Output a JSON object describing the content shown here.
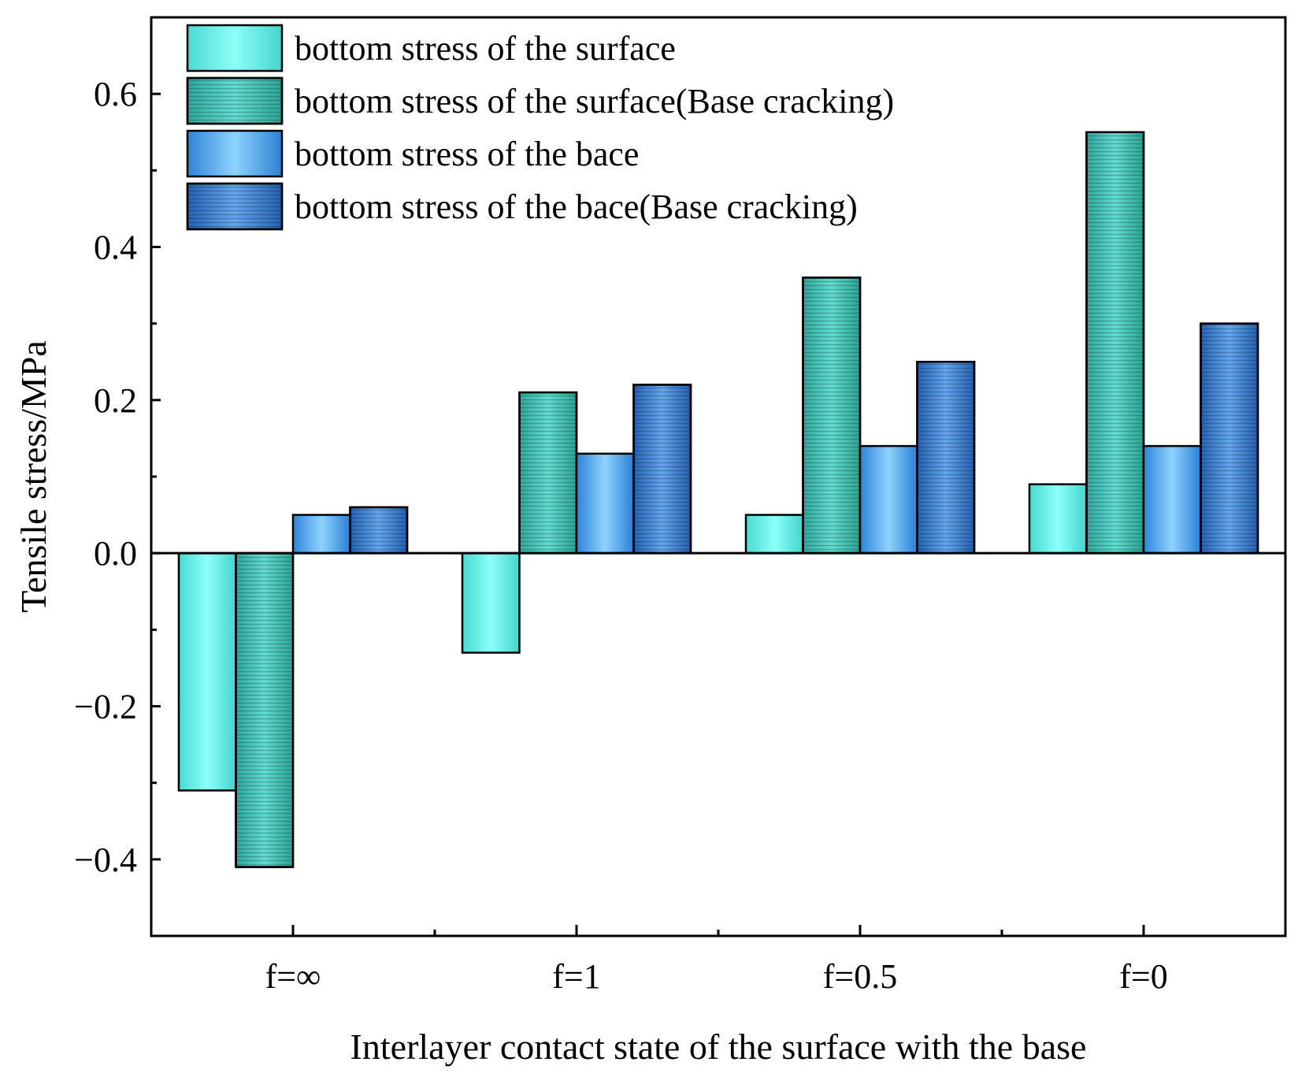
{
  "chart_data": {
    "type": "bar",
    "title": "",
    "xlabel": "Interlayer contact state of the surface with the base",
    "ylabel": "Tensile stress/MPa",
    "categories": [
      "f=∞",
      "f=1",
      "f=0.5",
      "f=0"
    ],
    "ylim": [
      -0.5,
      0.7
    ],
    "yticks": [
      -0.4,
      -0.2,
      0.0,
      0.2,
      0.4,
      0.6
    ],
    "ytick_labels": [
      "−0.4",
      "−0.2",
      "0.0",
      "0.2",
      "0.4",
      "0.6"
    ],
    "grid": false,
    "legend_position": "top-left",
    "series": [
      {
        "name": "bottom stress of the surface",
        "values": [
          -0.31,
          -0.13,
          0.05,
          0.09
        ],
        "color": "#66f2ea",
        "pattern": "none"
      },
      {
        "name": "bottom stress of the surface(Base cracking)",
        "values": [
          -0.41,
          0.21,
          0.36,
          0.55
        ],
        "color": "#3ec2b3",
        "pattern": "hatched"
      },
      {
        "name": "bottom stress of the bace",
        "values": [
          0.05,
          0.13,
          0.14,
          0.14
        ],
        "color": "#56aef0",
        "pattern": "none"
      },
      {
        "name": "bottom stress of the bace(Base cracking)",
        "values": [
          0.06,
          0.22,
          0.25,
          0.3
        ],
        "color": "#3c80d0",
        "pattern": "hatched"
      }
    ]
  }
}
